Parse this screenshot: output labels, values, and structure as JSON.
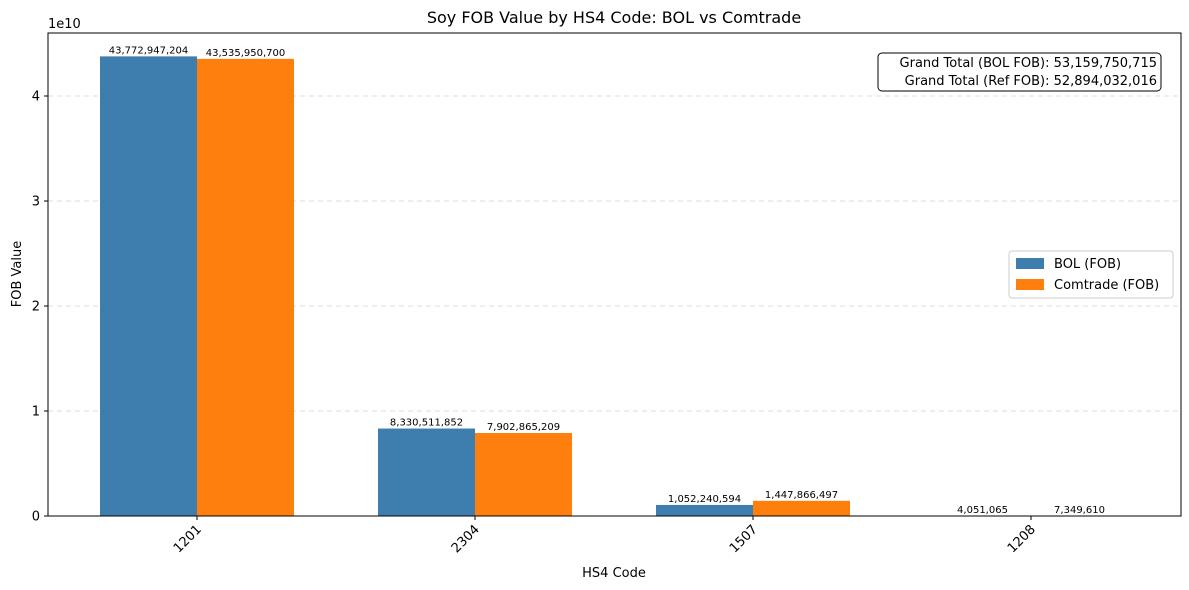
{
  "chart_data": {
    "type": "bar",
    "title": "Soy FOB Value by HS4 Code: BOL vs Comtrade",
    "xlabel": "HS4 Code",
    "ylabel": "FOB Value",
    "y_offset_label": "1e10",
    "categories": [
      "1201",
      "2304",
      "1507",
      "1208"
    ],
    "series": [
      {
        "name": "BOL (FOB)",
        "color": "#3e7eae",
        "values": [
          43772947204,
          8330511852,
          1052240594,
          4051065
        ],
        "labels": [
          "43,772,947,204",
          "8,330,511,852",
          "1,052,240,594",
          "4,051,065"
        ]
      },
      {
        "name": "Comtrade (FOB)",
        "color": "#ff7f0e",
        "values": [
          43535950700,
          7902865209,
          1447866497,
          7349610
        ],
        "labels": [
          "43,535,950,700",
          "7,902,865,209",
          "1,447,866,497",
          "7,349,610"
        ]
      }
    ],
    "ylim": [
      0,
      46000000000
    ],
    "yticks": [
      0,
      10000000000,
      20000000000,
      30000000000,
      40000000000
    ],
    "ytick_labels": [
      "0",
      "1",
      "2",
      "3",
      "4"
    ],
    "grid": "y-dashed",
    "legend_position": "center-right",
    "annotation": [
      "Grand Total (BOL FOB): 53,159,750,715",
      "Grand Total (Ref FOB): 52,894,032,016"
    ]
  }
}
